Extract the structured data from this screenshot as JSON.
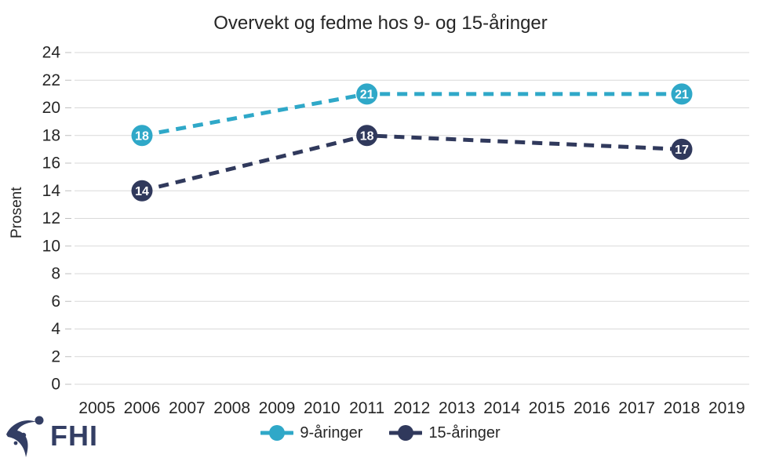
{
  "logo": {
    "text": "FHI"
  },
  "colors": {
    "series_9": "#2FA8C8",
    "series_15": "#30395C",
    "grid": "#D9D9D9",
    "tick": "#BFBFBF",
    "text": "#262626",
    "marker_label": "#FFFFFF",
    "logo": "#333E64"
  },
  "chart_data": {
    "type": "line",
    "title": "Overvekt og fedme hos 9- og 15-åringer",
    "xlabel": "",
    "ylabel": "Prosent",
    "categories": [
      "2005",
      "2006",
      "2007",
      "2008",
      "2009",
      "2010",
      "2011",
      "2012",
      "2013",
      "2014",
      "2015",
      "2016",
      "2017",
      "2018",
      "2019"
    ],
    "series": [
      {
        "name": "9-åringer",
        "color_key": "series_9",
        "points": [
          {
            "x": "2006",
            "y": 18
          },
          {
            "x": "2011",
            "y": 21
          },
          {
            "x": "2018",
            "y": 21
          }
        ]
      },
      {
        "name": "15-åringer",
        "color_key": "series_15",
        "points": [
          {
            "x": "2006",
            "y": 14
          },
          {
            "x": "2011",
            "y": 18
          },
          {
            "x": "2018",
            "y": 17
          }
        ]
      }
    ],
    "ylim": [
      0,
      24
    ],
    "ytick_step": 2,
    "grid": "horizontal",
    "line_style": "dashed",
    "data_labels": true,
    "legend_position": "bottom"
  }
}
